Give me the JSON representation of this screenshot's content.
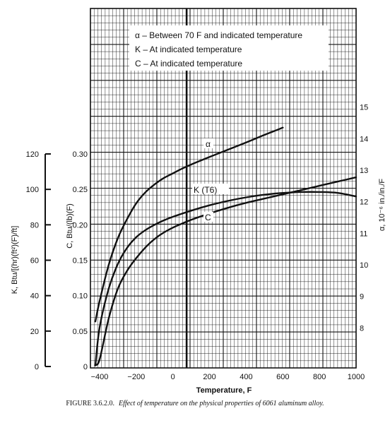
{
  "chart_data": {
    "type": "line",
    "xlabel": "Temperature, F",
    "x_ticks": [
      -400,
      -200,
      0,
      200,
      400,
      600,
      800,
      1000
    ],
    "xlim": [
      -450,
      1000
    ],
    "reference_line_x": 75,
    "y_axes": [
      {
        "id": "K",
        "label": "K, Btu/[(hr)(ft²)(F)/ft]",
        "ylim": [
          0,
          120
        ],
        "ticks": [
          0,
          20,
          40,
          60,
          80,
          100,
          120
        ]
      },
      {
        "id": "C",
        "label": "C, Btu/(lb)(F)",
        "ylim": [
          0,
          0.3
        ],
        "ticks": [
          "0",
          "0.05",
          "0.10",
          "0.15",
          "0.20",
          "0.25",
          "0.30"
        ]
      },
      {
        "id": "a",
        "label": "α, 10⁻⁶ in./in./F",
        "ylim": [
          7.2,
          15.8
        ],
        "ticks": [
          8,
          9,
          10,
          11,
          12,
          13,
          14,
          15
        ]
      }
    ],
    "legend": [
      "α – Between 70 F and indicated temperature",
      "K – At indicated temperature",
      "C – At indicated temperature"
    ],
    "series": [
      {
        "name": "α",
        "axis": "a",
        "x": [
          -423,
          -400,
          -350,
          -300,
          -250,
          -200,
          -150,
          -100,
          -50,
          0,
          50,
          100,
          200,
          300,
          400,
          500,
          600
        ],
        "y": [
          8.2,
          8.85,
          10.0,
          10.85,
          11.45,
          11.95,
          12.3,
          12.55,
          12.75,
          12.9,
          13.05,
          13.18,
          13.42,
          13.65,
          13.88,
          14.12,
          14.35
        ]
      },
      {
        "name": "K (T6)",
        "axis": "K",
        "x": [
          -423,
          -400,
          -350,
          -300,
          -250,
          -200,
          -150,
          -100,
          -50,
          0,
          100,
          200,
          300,
          400,
          500,
          600,
          700,
          800,
          900,
          1000
        ],
        "y": [
          0.5,
          22,
          44,
          58,
          67,
          73,
          77,
          80,
          82.5,
          84.5,
          88,
          91,
          93.5,
          95.5,
          97,
          98,
          98.5,
          98.5,
          98,
          96
        ]
      },
      {
        "name": "C",
        "axis": "C",
        "x": [
          -423,
          -400,
          -350,
          -300,
          -250,
          -200,
          -150,
          -100,
          -50,
          0,
          100,
          200,
          300,
          400,
          500,
          600,
          700,
          800,
          900,
          1000
        ],
        "y": [
          0.002,
          0.01,
          0.068,
          0.11,
          0.135,
          0.153,
          0.168,
          0.18,
          0.189,
          0.196,
          0.207,
          0.216,
          0.224,
          0.231,
          0.237,
          0.243,
          0.249,
          0.255,
          0.261,
          0.267
        ]
      }
    ],
    "curve_labels": {
      "a": "α",
      "k": "K (T6)",
      "c": "C"
    }
  },
  "caption": {
    "label": "FIGURE 3.6.2.0.",
    "title": "Effect of temperature on the physical properties of 6061 aluminum alloy."
  }
}
